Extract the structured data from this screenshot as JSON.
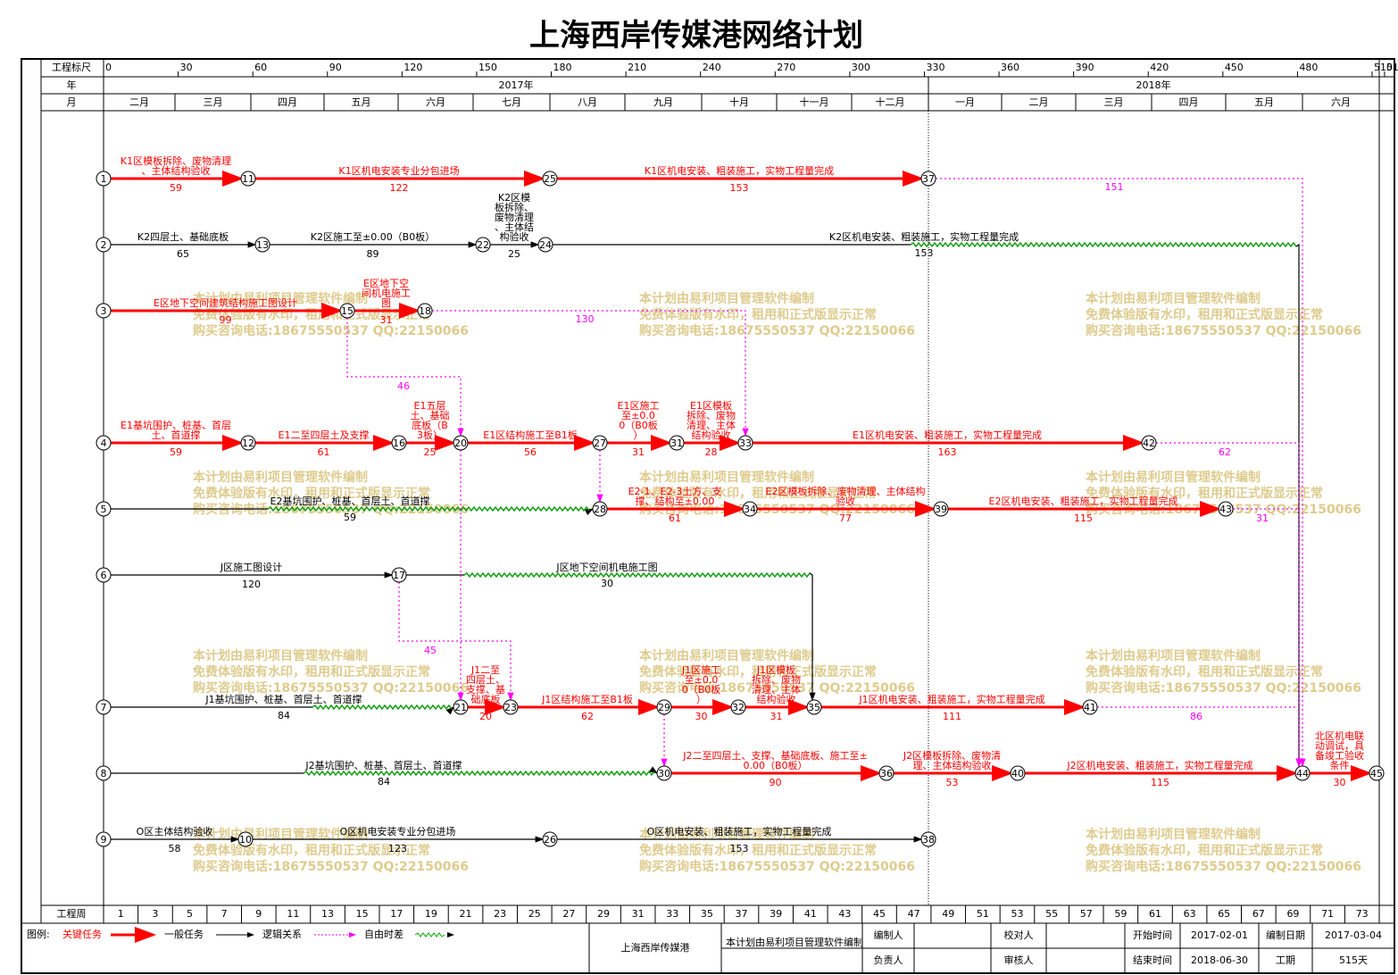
{
  "title": "上海西岸传媒港网络计划",
  "header": {
    "scale_label": "工程标尺",
    "year_label": "年",
    "month_label": "月",
    "scale": [
      0,
      30,
      60,
      90,
      120,
      150,
      180,
      210,
      240,
      270,
      300,
      330,
      360,
      390,
      420,
      450,
      480,
      510,
      515
    ],
    "years": [
      "2017年",
      "2018年"
    ],
    "months": [
      "二月",
      "三月",
      "四月",
      "五月",
      "六月",
      "七月",
      "八月",
      "九月",
      "十月",
      "十一月",
      "十二月",
      "一月",
      "二月",
      "三月",
      "四月",
      "五月",
      "六月"
    ]
  },
  "nodes": [
    1,
    11,
    25,
    37,
    2,
    13,
    22,
    24,
    3,
    15,
    18,
    4,
    12,
    16,
    20,
    27,
    31,
    33,
    42,
    5,
    28,
    34,
    39,
    43,
    6,
    17,
    7,
    21,
    23,
    29,
    32,
    35,
    41,
    8,
    30,
    36,
    40,
    44,
    45,
    9,
    10,
    26,
    38
  ],
  "tasks": [
    {
      "from": 1,
      "to": 11,
      "kind": "critical",
      "label": "K1区模板拆除、废物清理、主体结构验收",
      "duration": 59
    },
    {
      "from": 11,
      "to": 25,
      "kind": "critical",
      "label": "K1区机电安装专业分包进场",
      "duration": 122
    },
    {
      "from": 25,
      "to": 37,
      "kind": "critical",
      "label": "K1区机电安装、粗装施工，实物工程量完成",
      "duration": 153
    },
    {
      "from": 37,
      "to": 44,
      "kind": "logic",
      "duration": 151
    },
    {
      "from": 2,
      "to": 13,
      "kind": "normal",
      "label": "K2四层土、基础底板",
      "duration": 65
    },
    {
      "from": 13,
      "to": 22,
      "kind": "normal",
      "label": "K2区施工至±0.00（B0板）",
      "duration": 89
    },
    {
      "from": 22,
      "to": 24,
      "kind": "normal",
      "label": "K2区模板拆除、废物清理、主体结构验收",
      "duration": 25
    },
    {
      "from": 24,
      "to": 44,
      "kind": "normal",
      "label": "K2区机电安装、粗装施工，实物工程量完成",
      "duration": 153
    },
    {
      "from": 3,
      "to": 15,
      "kind": "critical",
      "label": "E区地下空间建筑结构施工图设计",
      "duration": 99
    },
    {
      "from": 15,
      "to": 18,
      "kind": "critical",
      "label": "E区地下空间机电施工图",
      "duration": 31
    },
    {
      "from": 18,
      "to": 33,
      "kind": "logic",
      "duration": 130
    },
    {
      "from": 15,
      "to": 20,
      "kind": "logic",
      "duration": 46
    },
    {
      "from": 4,
      "to": 12,
      "kind": "critical",
      "label": "E1基坑围护、桩基、首层土、首道撑",
      "duration": 59
    },
    {
      "from": 12,
      "to": 16,
      "kind": "critical",
      "label": "E1二至四层土及支撑",
      "duration": 61
    },
    {
      "from": 16,
      "to": 20,
      "kind": "critical",
      "label": "E1五层土、基础底板（B3板）",
      "duration": 25
    },
    {
      "from": 20,
      "to": 27,
      "kind": "critical",
      "label": "E1区结构施工至B1板",
      "duration": 56
    },
    {
      "from": 27,
      "to": 31,
      "kind": "critical",
      "label": "E1区施工至±0.00（B0板）",
      "duration": 31
    },
    {
      "from": 31,
      "to": 33,
      "kind": "critical",
      "label": "E1区模板拆除、废物清理、主体结构验收",
      "duration": 28
    },
    {
      "from": 33,
      "to": 42,
      "kind": "critical",
      "label": "E1区机电安装、粗装施工，实物工程量完成",
      "duration": 163
    },
    {
      "from": 42,
      "to": 44,
      "kind": "logic",
      "duration": 62
    },
    {
      "from": 5,
      "to": 28,
      "kind": "normal",
      "label": "E2基坑围护、桩基、首层土、首道撑",
      "duration": 59
    },
    {
      "from": 28,
      "to": 34,
      "kind": "critical",
      "label": "E2-1、E2-3土方、支撑、结构至±0.00",
      "duration": 61
    },
    {
      "from": 34,
      "to": 39,
      "kind": "critical",
      "label": "E2区模板拆除、废物清理、主体结构验收",
      "duration": 77
    },
    {
      "from": 39,
      "to": 43,
      "kind": "critical",
      "label": "E2区机电安装、粗装施工，实物工程量完成",
      "duration": 115
    },
    {
      "from": 43,
      "to": 44,
      "kind": "logic",
      "duration": 31
    },
    {
      "from": 27,
      "to": 28,
      "kind": "logic"
    },
    {
      "from": 6,
      "to": 17,
      "kind": "normal",
      "label": "J区施工图设计",
      "duration": 120
    },
    {
      "from": 17,
      "to": 35,
      "kind": "normal",
      "label": "J区地下空间机电施工图",
      "duration": 30
    },
    {
      "from": 17,
      "to": 23,
      "kind": "logic",
      "duration": 45
    },
    {
      "from": 20,
      "to": 21,
      "kind": "logic"
    },
    {
      "from": 7,
      "to": 21,
      "kind": "normal",
      "label": "J1基坑围护、桩基、首层土、首道撑",
      "duration": 84
    },
    {
      "from": 21,
      "to": 23,
      "kind": "critical",
      "label": "J1二至四层土、支撑、基础底板",
      "duration": 20
    },
    {
      "from": 23,
      "to": 29,
      "kind": "critical",
      "label": "J1区结构施工至B1板",
      "duration": 62
    },
    {
      "from": 29,
      "to": 32,
      "kind": "critical",
      "label": "J1区施工至±0.00（B0板）",
      "duration": 30
    },
    {
      "from": 32,
      "to": 35,
      "kind": "critical",
      "label": "J1区模板拆除、废物清理、主体结构验收",
      "duration": 31
    },
    {
      "from": 35,
      "to": 41,
      "kind": "critical",
      "label": "J1区机电安装、粗装施工，实物工程量完成",
      "duration": 111
    },
    {
      "from": 41,
      "to": 44,
      "kind": "logic",
      "duration": 86
    },
    {
      "from": 29,
      "to": 30,
      "kind": "logic"
    },
    {
      "from": 8,
      "to": 30,
      "kind": "normal",
      "label": "J2基坑围护、桩基、首层土、首道撑",
      "duration": 84
    },
    {
      "from": 30,
      "to": 36,
      "kind": "critical",
      "label": "J2二至四层土、支撑、基础底板、施工至±0.00（B0板）",
      "duration": 90
    },
    {
      "from": 36,
      "to": 40,
      "kind": "critical",
      "label": "J2区模板拆除、废物清理、主体结构验收",
      "duration": 53
    },
    {
      "from": 40,
      "to": 44,
      "kind": "critical",
      "label": "J2区机电安装、粗装施工，实物工程量完成",
      "duration": 115
    },
    {
      "from": 44,
      "to": 45,
      "kind": "critical",
      "label": "北区机电联动调试，具备竣工验收条件",
      "duration": 30
    },
    {
      "from": 9,
      "to": 10,
      "kind": "normal",
      "label": "O区主体结构验收",
      "duration": 58
    },
    {
      "from": 10,
      "to": 26,
      "kind": "normal",
      "label": "O区机电安装专业分包进场",
      "duration": 123
    },
    {
      "from": 26,
      "to": 38,
      "kind": "normal",
      "label": "O区机电安装、粗装施工，实物工程量完成",
      "duration": 153
    }
  ],
  "watermark": [
    "本计划由易利项目管理软件编制",
    "免费体验版有水印，租用和正式版显示正常",
    "购买咨询电话:18675550537 QQ:22150066"
  ],
  "footer": {
    "week_label": "工程周",
    "weeks": [
      1,
      3,
      5,
      7,
      9,
      11,
      13,
      15,
      17,
      19,
      21,
      23,
      25,
      27,
      29,
      31,
      33,
      35,
      37,
      39,
      41,
      43,
      45,
      47,
      49,
      51,
      53,
      55,
      57,
      59,
      61,
      63,
      65,
      67,
      69,
      71,
      73
    ],
    "legend": {
      "title": "图例:",
      "critical": "关键任务",
      "normal": "一般任务",
      "logic": "逻辑关系",
      "float": "自由时差"
    },
    "project": "上海西岸传媒港",
    "software": "本计划由易利项目管理软件编制",
    "editor": "编制人",
    "checker": "校对人",
    "manager": "负责人",
    "reviewer": "审核人",
    "start_label": "开始时间",
    "start": "2017-02-01",
    "end_label": "结束时间",
    "end": "2018-06-30",
    "date_label": "编制日期",
    "date": "2017-03-04",
    "duration_label": "工期",
    "duration": "515天"
  }
}
